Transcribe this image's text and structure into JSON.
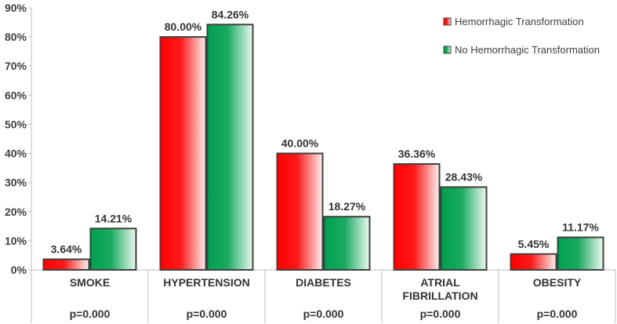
{
  "chart_data": {
    "type": "bar",
    "title": "",
    "xlabel": "",
    "ylabel": "",
    "ylim": [
      0,
      90
    ],
    "yticks": [
      "0%",
      "10%",
      "20%",
      "30%",
      "40%",
      "50%",
      "60%",
      "70%",
      "80%",
      "90%"
    ],
    "ytick_values": [
      0,
      10,
      20,
      30,
      40,
      50,
      60,
      70,
      80,
      90
    ],
    "categories": [
      "SMOKE",
      "HYPERTENSION",
      "DIABETES",
      "ATRIAL FIBRILLATION",
      "OBESITY"
    ],
    "category_lines": [
      [
        "SMOKE"
      ],
      [
        "HYPERTENSION"
      ],
      [
        "DIABETES"
      ],
      [
        "ATRIAL",
        "FIBRILLATION"
      ],
      [
        "OBESITY"
      ]
    ],
    "p_values": [
      "p=0.000",
      "p=0.000",
      "p=0.000",
      "p=0.000",
      "p=0.000"
    ],
    "series": [
      {
        "name": "Hemorrhagic Transformation",
        "values": [
          3.64,
          80.0,
          40.0,
          36.36,
          5.45
        ],
        "labels": [
          "3.64%",
          "80.00%",
          "40.00%",
          "36.36%",
          "5.45%"
        ],
        "color": "#ff0000"
      },
      {
        "name": "No Hemorrhagic Transformation",
        "values": [
          14.21,
          84.26,
          18.27,
          28.43,
          11.17
        ],
        "labels": [
          "14.21%",
          "84.26%",
          "18.27%",
          "28.43%",
          "11.17%"
        ],
        "color": "#00a050"
      }
    ],
    "grid": false,
    "legend_position": "top-right"
  }
}
